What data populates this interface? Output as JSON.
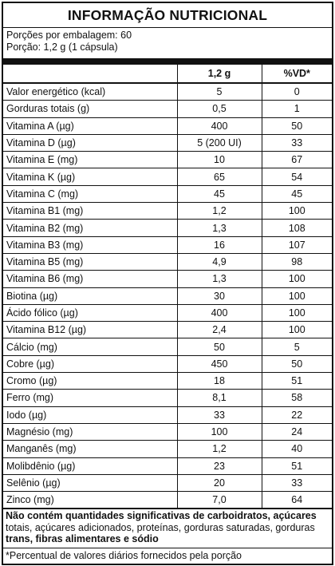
{
  "title": "INFORMAÇÃO NUTRICIONAL",
  "servings_per_package": "Porções por embalagem: 60",
  "serving_size": "Porção: 1,2 g (1 cápsula)",
  "headers": [
    "",
    "1,2 g",
    "%VD*"
  ],
  "rows": [
    {
      "name": "Valor energético (kcal)",
      "amount": "5",
      "dv": "0"
    },
    {
      "name": "Gorduras totais (g)",
      "amount": "0,5",
      "dv": "1"
    },
    {
      "name": "Vitamina A (µg)",
      "amount": "400",
      "dv": "50"
    },
    {
      "name": "Vitamina D (µg)",
      "amount": "5 (200 UI)",
      "dv": "33"
    },
    {
      "name": "Vitamina E (mg)",
      "amount": "10",
      "dv": "67"
    },
    {
      "name": "Vitamina K (µg)",
      "amount": "65",
      "dv": "54"
    },
    {
      "name": "Vitamina C (mg)",
      "amount": "45",
      "dv": "45"
    },
    {
      "name": "Vitamina B1 (mg)",
      "amount": "1,2",
      "dv": "100"
    },
    {
      "name": "Vitamina B2 (mg)",
      "amount": "1,3",
      "dv": "108"
    },
    {
      "name": "Vitamina B3 (mg)",
      "amount": "16",
      "dv": "107"
    },
    {
      "name": "Vitamina B5 (mg)",
      "amount": "4,9",
      "dv": "98"
    },
    {
      "name": "Vitamina B6 (mg)",
      "amount": "1,3",
      "dv": "100"
    },
    {
      "name": "Biotina (µg)",
      "amount": "30",
      "dv": "100"
    },
    {
      "name": "Ácido fólico (µg)",
      "amount": "400",
      "dv": "100"
    },
    {
      "name": "Vitamina B12 (µg)",
      "amount": "2,4",
      "dv": "100"
    },
    {
      "name": "Cálcio (mg)",
      "amount": "50",
      "dv": "5"
    },
    {
      "name": "Cobre (µg)",
      "amount": "450",
      "dv": "50"
    },
    {
      "name": "Cromo (µg)",
      "amount": "18",
      "dv": "51"
    },
    {
      "name": "Ferro (mg)",
      "amount": "8,1",
      "dv": "58"
    },
    {
      "name": "Iodo (µg)",
      "amount": "33",
      "dv": "22"
    },
    {
      "name": "Magnésio (mg)",
      "amount": "100",
      "dv": "24"
    },
    {
      "name": "Manganês (mg)",
      "amount": "1,2",
      "dv": "40"
    },
    {
      "name": "Molibdênio (µg)",
      "amount": "23",
      "dv": "51"
    },
    {
      "name": "Selênio (µg)",
      "amount": "20",
      "dv": "33"
    },
    {
      "name": "Zinco (mg)",
      "amount": "7,0",
      "dv": "64"
    }
  ],
  "note_bold": "Não contém quantidades significativas de carboidratos, açúcares",
  "note_normal": "totais, açúcares adicionados, proteínas, gorduras saturadas, gorduras",
  "note_bold_end": "trans, fibras alimentares e sódio",
  "footnote": "*Percentual de valores diários fornecidos pela porção"
}
